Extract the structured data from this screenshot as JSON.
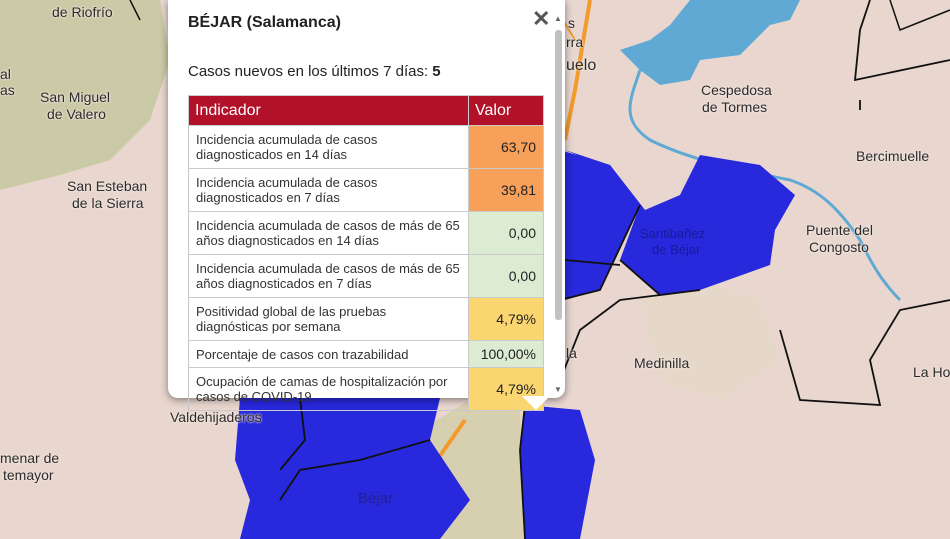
{
  "map": {
    "colors": {
      "base": "#e9d7cf",
      "forest": "#c7c9a2",
      "municipality": "#2828dc",
      "river": "#5fa9d4",
      "road": "#f39a2a",
      "border": "#111111"
    },
    "places": [
      {
        "id": "riofrio",
        "text": "de Riofrío"
      },
      {
        "id": "al",
        "text": "al"
      },
      {
        "id": "as",
        "text": "as"
      },
      {
        "id": "san-miguel-1",
        "text": "San Miguel"
      },
      {
        "id": "san-miguel-2",
        "text": "de Valero"
      },
      {
        "id": "san-esteban-1",
        "text": "San Esteban"
      },
      {
        "id": "san-esteban-2",
        "text": "de la Sierra"
      },
      {
        "id": "valdehijaderos",
        "text": "Valdehijaderos"
      },
      {
        "id": "montemayor-1",
        "text": "menar de"
      },
      {
        "id": "montemayor-2",
        "text": "temayor"
      },
      {
        "id": "cespedosa-1",
        "text": "Cespedosa"
      },
      {
        "id": "cespedosa-2",
        "text": "de Tormes"
      },
      {
        "id": "bercimuelle",
        "text": "Bercimuelle"
      },
      {
        "id": "puente-1",
        "text": "Puente del"
      },
      {
        "id": "puente-2",
        "text": "Congosto"
      },
      {
        "id": "medinilla",
        "text": "Medinilla"
      },
      {
        "id": "la-ho",
        "text": "La Ho"
      },
      {
        "id": "guijuelo",
        "text": "uelo"
      },
      {
        "id": "frag-s",
        "text": "s"
      },
      {
        "id": "frag-rra",
        "text": "rra"
      },
      {
        "id": "frag-la",
        "text": "la"
      },
      {
        "id": "santibanez-1",
        "text": "Santibañez"
      },
      {
        "id": "santibanez-2",
        "text": "de Béjar"
      },
      {
        "id": "bejar",
        "text": "Béjar"
      }
    ]
  },
  "popup": {
    "title": "BÉJAR (Salamanca)",
    "close_symbol": "✕",
    "cases_label": "Casos nuevos en los últimos 7 días: ",
    "cases_value": "5",
    "table": {
      "headers": [
        "Indicador",
        "Valor"
      ],
      "rows": [
        {
          "indicator": "Incidencia acumulada de casos diagnosticados en 14 días",
          "value": "63,70",
          "color": "#f6a05a"
        },
        {
          "indicator": "Incidencia acumulada de casos diagnosticados en 7 días",
          "value": "39,81",
          "color": "#f6a05a"
        },
        {
          "indicator": "Incidencia acumulada de casos de más de 65 años diagnosticados en 14 días",
          "value": "0,00",
          "color": "#dcecd3"
        },
        {
          "indicator": "Incidencia acumulada de casos de más de 65 años diagnosticados en 7 días",
          "value": "0,00",
          "color": "#dcecd3"
        },
        {
          "indicator": "Positividad global de las pruebas diagnósticas por semana",
          "value": "4,79%",
          "color": "#fbd670"
        },
        {
          "indicator": "Porcentaje de casos con trazabilidad",
          "value": "100,00%",
          "color": "#dcecd3"
        },
        {
          "indicator": "Ocupación de camas de hospitalización por casos de COVID-19",
          "value": "4,79%",
          "color": "#fbd670"
        }
      ]
    }
  }
}
